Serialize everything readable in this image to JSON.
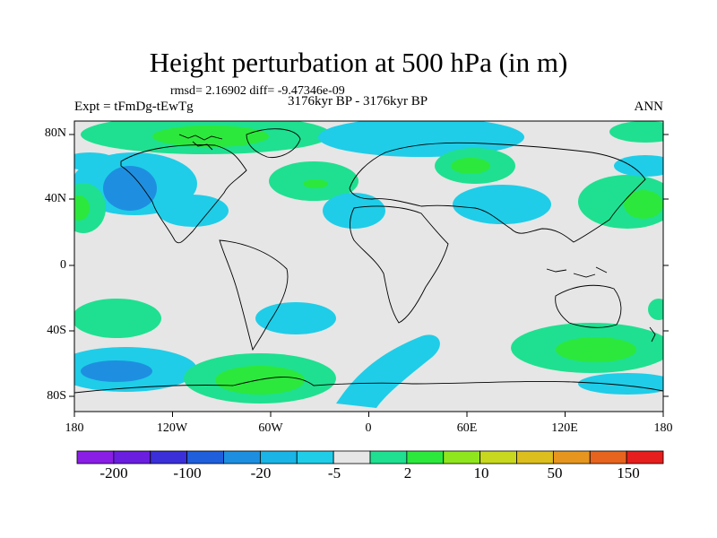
{
  "title": "Height perturbation at 500 hPa (in m)",
  "stats_line": "rmsd= 2.16902 diff= -9.47346e-09",
  "experiment": "Expt = tFmDg-tEwTg",
  "period": "3176kyr BP - 3176kyr BP",
  "season": "ANN",
  "lat_labels": [
    "80N",
    "40N",
    "0",
    "40S",
    "80S"
  ],
  "lon_labels": [
    "180",
    "120W",
    "60W",
    "0",
    "60E",
    "120E",
    "180"
  ],
  "colorbar": {
    "labels": [
      "-200",
      "-100",
      "-20",
      "-5",
      "2",
      "10",
      "50",
      "150"
    ],
    "colors": [
      "#8a1ee6",
      "#6a1ee0",
      "#3a2fd8",
      "#1f5fdc",
      "#1e8fe0",
      "#1ab4e6",
      "#1fcde8",
      "#e6e6e6",
      "#1fe090",
      "#2ce83c",
      "#90e61e",
      "#c8d81e",
      "#dcbf1e",
      "#e6961e",
      "#e6641e",
      "#e61e1e"
    ]
  },
  "colors": {
    "neutral": "#e6e6e6",
    "light_blue": "#1fcde8",
    "mid_blue": "#1e8fe0",
    "light_green": "#1fe090",
    "green": "#2ce83c",
    "yellow_green": "#90e61e"
  }
}
